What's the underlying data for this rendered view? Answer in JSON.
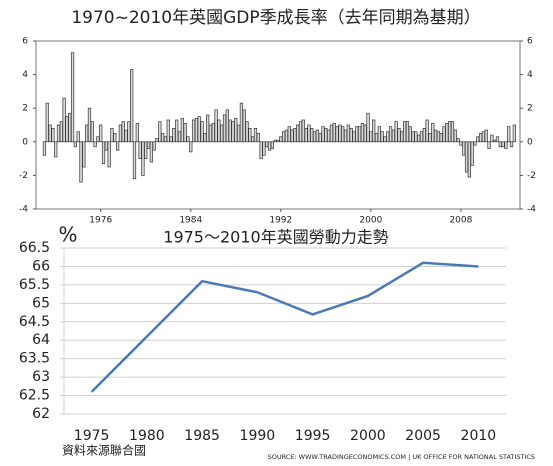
{
  "chart_data": [
    {
      "type": "bar",
      "title": "1970~2010年英國GDP季成長率（去年同期為基期）",
      "x": [
        1971,
        1971.25,
        1971.5,
        1971.75,
        1972,
        1972.25,
        1972.5,
        1972.75,
        1973,
        1973.25,
        1973.5,
        1973.75,
        1974,
        1974.25,
        1974.5,
        1974.75,
        1975,
        1975.25,
        1975.5,
        1975.75,
        1976,
        1976.25,
        1976.5,
        1976.75,
        1977,
        1977.25,
        1977.5,
        1977.75,
        1978,
        1978.25,
        1978.5,
        1978.75,
        1979,
        1979.25,
        1979.5,
        1979.75,
        1980,
        1980.25,
        1980.5,
        1980.75,
        1981,
        1981.25,
        1981.5,
        1981.75,
        1982,
        1982.25,
        1982.5,
        1982.75,
        1983,
        1983.25,
        1983.5,
        1983.75,
        1984,
        1984.25,
        1984.5,
        1984.75,
        1985,
        1985.25,
        1985.5,
        1985.75,
        1986,
        1986.25,
        1986.5,
        1986.75,
        1987,
        1987.25,
        1987.5,
        1987.75,
        1988,
        1988.25,
        1988.5,
        1988.75,
        1989,
        1989.25,
        1989.5,
        1989.75,
        1990,
        1990.25,
        1990.5,
        1990.75,
        1991,
        1991.25,
        1991.5,
        1991.75,
        1992,
        1992.25,
        1992.5,
        1992.75,
        1993,
        1993.25,
        1993.5,
        1993.75,
        1994,
        1994.25,
        1994.5,
        1994.75,
        1995,
        1995.25,
        1995.5,
        1995.75,
        1996,
        1996.25,
        1996.5,
        1996.75,
        1997,
        1997.25,
        1997.5,
        1997.75,
        1998,
        1998.25,
        1998.5,
        1998.75,
        1999,
        1999.25,
        1999.5,
        1999.75,
        2000,
        2000.25,
        2000.5,
        2000.75,
        2001,
        2001.25,
        2001.5,
        2001.75,
        2002,
        2002.25,
        2002.5,
        2002.75,
        2003,
        2003.25,
        2003.5,
        2003.75,
        2004,
        2004.25,
        2004.5,
        2004.75,
        2005,
        2005.25,
        2005.5,
        2005.75,
        2006,
        2006.25,
        2006.5,
        2006.75,
        2007,
        2007.25,
        2007.5,
        2007.75,
        2008,
        2008.25,
        2008.5,
        2008.75,
        2009,
        2009.25,
        2009.5,
        2009.75,
        2010,
        2010.25,
        2010.5,
        2010.75,
        2011,
        2011.25,
        2011.5,
        2011.75,
        2012,
        2012.25,
        2012.5,
        2012.75
      ],
      "values": [
        -0.8,
        2.3,
        1,
        0.8,
        -0.9,
        1,
        1.2,
        2.6,
        1.5,
        1.7,
        5.3,
        -0.3,
        0.6,
        -2.4,
        -1.5,
        1,
        2,
        1.2,
        -0.3,
        0.3,
        1,
        -1.3,
        -0.5,
        -1.5,
        0.8,
        0.5,
        -0.5,
        1,
        1.2,
        0.7,
        1.2,
        4.3,
        -2.2,
        1.1,
        -1,
        -2,
        -1,
        -0.4,
        -1.2,
        -0.5,
        0.2,
        1.2,
        0.5,
        0.3,
        1.3,
        0.3,
        0.8,
        1.3,
        0.6,
        1.4,
        1.1,
        0.3,
        -0.6,
        1.3,
        1.4,
        1.5,
        1.2,
        0.5,
        1.6,
        1,
        1.1,
        1.9,
        1.3,
        1,
        1.6,
        1.9,
        1.3,
        1.2,
        1.4,
        1,
        2.3,
        1.9,
        1.2,
        0.8,
        0.3,
        0.8,
        0.5,
        -1,
        -0.8,
        -0.3,
        -0.5,
        -0.4,
        0.1,
        0.1,
        0.3,
        0.6,
        0.7,
        0.9,
        0.7,
        0.8,
        1,
        1.2,
        1.3,
        0.8,
        1,
        0.8,
        0.6,
        0.7,
        0.5,
        0.9,
        0.8,
        0.7,
        1,
        1.1,
        0.9,
        1,
        0.9,
        0.7,
        1,
        0.8,
        0.6,
        0.9,
        0.9,
        1.1,
        1,
        1.7,
        0.6,
        1.3,
        0.5,
        0.9,
        0.6,
        0.3,
        0.6,
        0.9,
        0.7,
        1.2,
        0.8,
        0.6,
        1.2,
        1.2,
        0.9,
        0.6,
        0.6,
        0.4,
        0.6,
        0.8,
        1.3,
        0.5,
        1.1,
        0.7,
        0.6,
        0.5,
        0.9,
        1.1,
        1.2,
        1.2,
        0.7,
        0.2,
        -0.2,
        -0.8,
        -1.8,
        -2.1,
        -1.4,
        -0.2,
        0.3,
        0.5,
        0.6,
        0.7,
        -0.4,
        0.4,
        0.1,
        0.3,
        -0.3,
        -0.3,
        -0.4,
        0.9,
        -0.3,
        1
      ],
      "color": "#d9d9d9",
      "xlim": [
        1970.25,
        2013.25
      ],
      "xticks": [
        1976,
        1984,
        1992,
        2000,
        2008
      ],
      "ylim": [
        -4,
        6
      ],
      "yticks": [
        -4,
        -2,
        0,
        2,
        4,
        6
      ]
    },
    {
      "type": "line",
      "title": "1975～2010年英國勞動力走勢",
      "y_label": "%",
      "categories": [
        "1975",
        "1980",
        "1985",
        "1990",
        "1995",
        "2000",
        "2005",
        "2010"
      ],
      "values": [
        62.6,
        64.1,
        65.6,
        65.3,
        64.7,
        65.2,
        66.1,
        66.0
      ],
      "color": "#4a7ab5",
      "ylim": [
        62,
        66.5
      ],
      "yticks": [
        62,
        62.5,
        63,
        63.5,
        64,
        64.5,
        65,
        65.5,
        66,
        66.5
      ],
      "grid": true,
      "annotations": [
        "資料來源聯合國",
        "SOURCE: WWW.TRADINGECONOMICS.COM | UK OFFICE FOR NATIONAL STATISTICS"
      ]
    }
  ]
}
